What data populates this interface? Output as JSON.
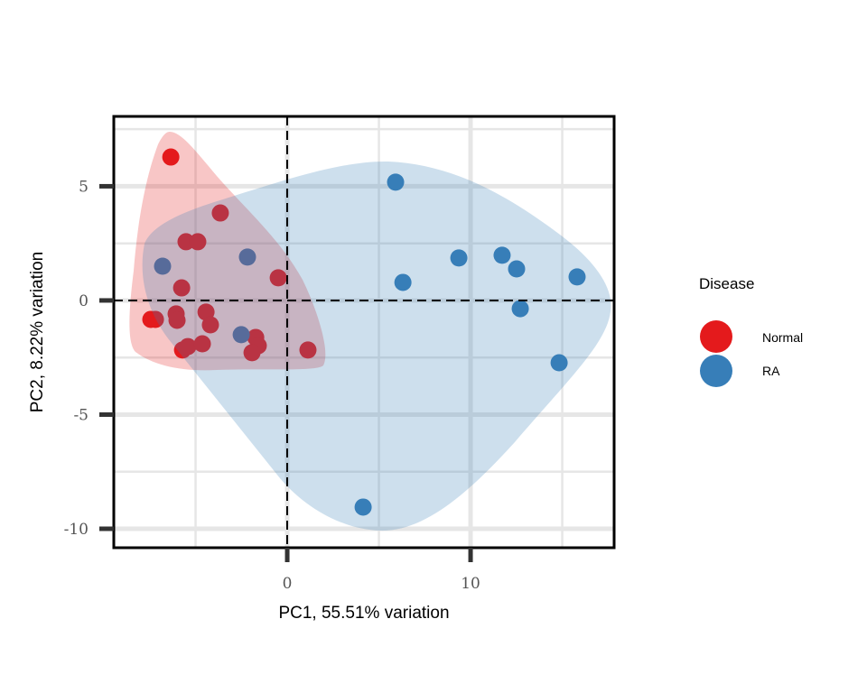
{
  "chart_data": {
    "type": "scatter",
    "title": "",
    "xlabel": "PC1, 55.51% variation",
    "ylabel": "PC2, 8.22% variation",
    "xlim": [
      -9.46,
      17.83
    ],
    "ylim": [
      -10.83,
      8.06
    ],
    "xticks": [
      0,
      10
    ],
    "xtick_labels": [
      "0",
      "10"
    ],
    "yticks": [
      -10,
      -5,
      0,
      5
    ],
    "ytick_labels": [
      "-10",
      "-5",
      "0",
      "5"
    ],
    "grid": true,
    "reference_lines": {
      "x": 0,
      "y": 0,
      "style": "dashed"
    },
    "legend": {
      "title": "Disease",
      "placement": "right",
      "entries": [
        "Normal",
        "RA"
      ]
    },
    "series": [
      {
        "name": "Normal",
        "color": "#E41A1C",
        "points": [
          [
            -6.35,
            6.28
          ],
          [
            -3.65,
            3.83
          ],
          [
            -5.52,
            2.57
          ],
          [
            -4.88,
            2.57
          ],
          [
            -5.76,
            0.55
          ],
          [
            -0.49,
            0.99
          ],
          [
            -7.44,
            -0.83
          ],
          [
            -7.19,
            -0.83
          ],
          [
            -6.06,
            -0.59
          ],
          [
            -6.01,
            -0.87
          ],
          [
            -4.43,
            -0.51
          ],
          [
            -4.19,
            -1.07
          ],
          [
            -5.71,
            -2.17
          ],
          [
            -5.42,
            -2.02
          ],
          [
            -4.63,
            -1.9
          ],
          [
            -1.72,
            -1.62
          ],
          [
            -1.58,
            -1.98
          ],
          [
            -1.92,
            -2.29
          ],
          [
            1.13,
            -2.17
          ]
        ]
      },
      {
        "name": "RA",
        "color": "#377EB8",
        "points": [
          [
            -6.8,
            1.5
          ],
          [
            -2.17,
            1.9
          ],
          [
            -2.51,
            -1.5
          ],
          [
            5.91,
            5.18
          ],
          [
            6.31,
            0.79
          ],
          [
            9.36,
            1.86
          ],
          [
            11.72,
            1.98
          ],
          [
            12.51,
            1.38
          ],
          [
            12.71,
            -0.36
          ],
          [
            15.81,
            1.03
          ],
          [
            14.83,
            -2.73
          ],
          [
            4.14,
            -9.05
          ]
        ]
      }
    ]
  }
}
